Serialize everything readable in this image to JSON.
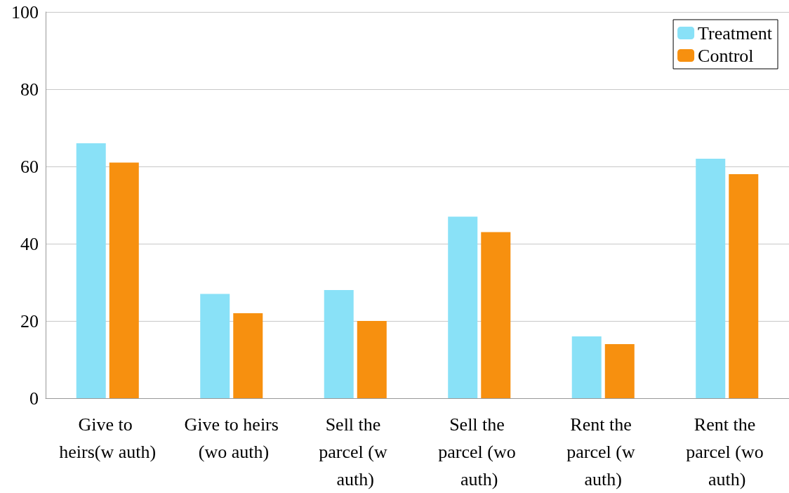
{
  "chart_data": {
    "type": "bar",
    "categories": [
      "Give to heirs(w auth)",
      "Give to heirs (wo auth)",
      "Sell the parcel (w auth)",
      "Sell the parcel (wo auth)",
      "Rent the parcel (w auth)",
      "Rent the parcel (wo auth)"
    ],
    "series": [
      {
        "name": "Treatment",
        "color": "#89e1f7",
        "values": [
          66,
          27,
          28,
          47,
          16,
          62
        ]
      },
      {
        "name": "Control",
        "color": "#f7900f",
        "values": [
          61,
          22,
          20,
          43,
          14,
          58
        ]
      }
    ],
    "ylim": [
      0,
      100
    ],
    "yticks": [
      0,
      20,
      40,
      60,
      80,
      100
    ],
    "grid": "y",
    "legend": "top right"
  }
}
